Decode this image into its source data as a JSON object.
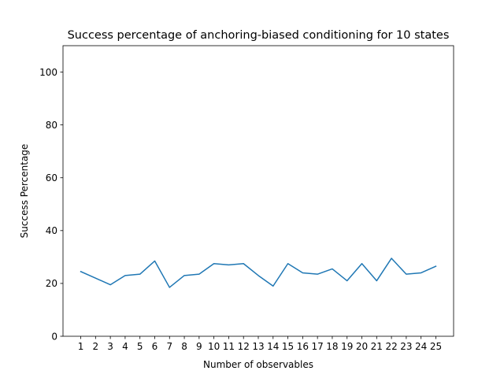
{
  "chart_data": {
    "type": "line",
    "title": "Success percentage of anchoring-biased conditioning for 10 states",
    "xlabel": "Number of observables",
    "ylabel": "Success Percentage",
    "x": [
      1,
      2,
      3,
      4,
      5,
      6,
      7,
      8,
      9,
      10,
      11,
      12,
      13,
      14,
      15,
      16,
      17,
      18,
      19,
      20,
      21,
      22,
      23,
      24,
      25
    ],
    "series": [
      {
        "color": "#1f77b4",
        "values": [
          24.5,
          22.0,
          19.5,
          23.0,
          23.5,
          28.5,
          18.5,
          23.0,
          23.5,
          27.5,
          27.0,
          27.5,
          23.0,
          19.0,
          27.5,
          24.0,
          23.5,
          25.5,
          21.0,
          27.5,
          21.0,
          29.5,
          23.5,
          24.0,
          26.5
        ]
      }
    ],
    "xlim": [
      -0.2,
      26.2
    ],
    "ylim": [
      0,
      110
    ],
    "yticks": [
      0,
      20,
      40,
      60,
      80,
      100
    ],
    "grid": false,
    "legend": "none"
  }
}
